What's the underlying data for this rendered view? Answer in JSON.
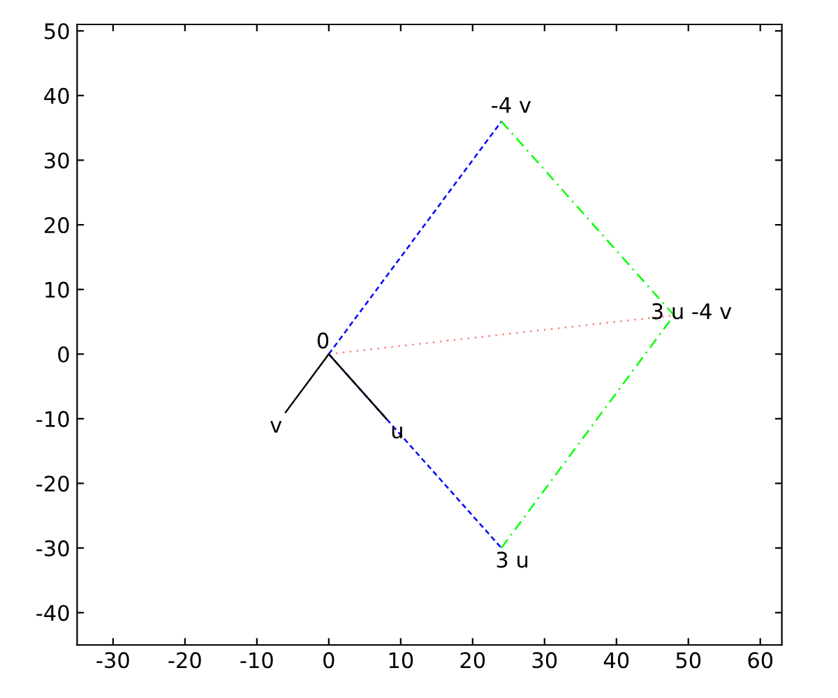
{
  "chart_data": {
    "type": "line",
    "xlim": [
      -35,
      63
    ],
    "ylim": [
      -45,
      51
    ],
    "xticks": [
      -30,
      -20,
      -10,
      0,
      10,
      20,
      30,
      40,
      50,
      60
    ],
    "yticks": [
      -40,
      -30,
      -20,
      -10,
      0,
      10,
      20,
      30,
      40,
      50
    ],
    "grid": false,
    "legend": false,
    "marker": "none",
    "series": [
      {
        "color": "#0000ff",
        "line_style": "dashed",
        "x": [
          0,
          24
        ],
        "values": [
          0,
          -30
        ]
      },
      {
        "color": "#0000ff",
        "line_style": "dashed",
        "x": [
          0,
          24
        ],
        "values": [
          0,
          36
        ]
      },
      {
        "color": "#00ff00",
        "line_style": "dashdot",
        "x": [
          24,
          48
        ],
        "values": [
          -30,
          6
        ]
      },
      {
        "color": "#00ff00",
        "line_style": "dashdot",
        "x": [
          24,
          48
        ],
        "values": [
          36,
          6
        ]
      },
      {
        "color": "#ff7f7f",
        "line_style": "dotted",
        "x": [
          0,
          48
        ],
        "values": [
          0,
          6
        ]
      },
      {
        "color": "#000000",
        "line_style": "solid",
        "x": [
          0,
          8
        ],
        "values": [
          0,
          -10
        ]
      },
      {
        "color": "#000000",
        "line_style": "solid",
        "x": [
          0,
          -6
        ],
        "values": [
          0,
          -9
        ]
      }
    ],
    "annotations": [
      {
        "text": "0",
        "x": 0,
        "y": 0
      },
      {
        "text": "v",
        "x": -6,
        "y": -9
      },
      {
        "text": "u",
        "x": 8,
        "y": -10
      },
      {
        "text": "3 u",
        "x": 24,
        "y": -30
      },
      {
        "text": "-4 v",
        "x": 24,
        "y": 36
      },
      {
        "text": "3 u -4 v",
        "x": 48,
        "y": 6
      }
    ]
  }
}
